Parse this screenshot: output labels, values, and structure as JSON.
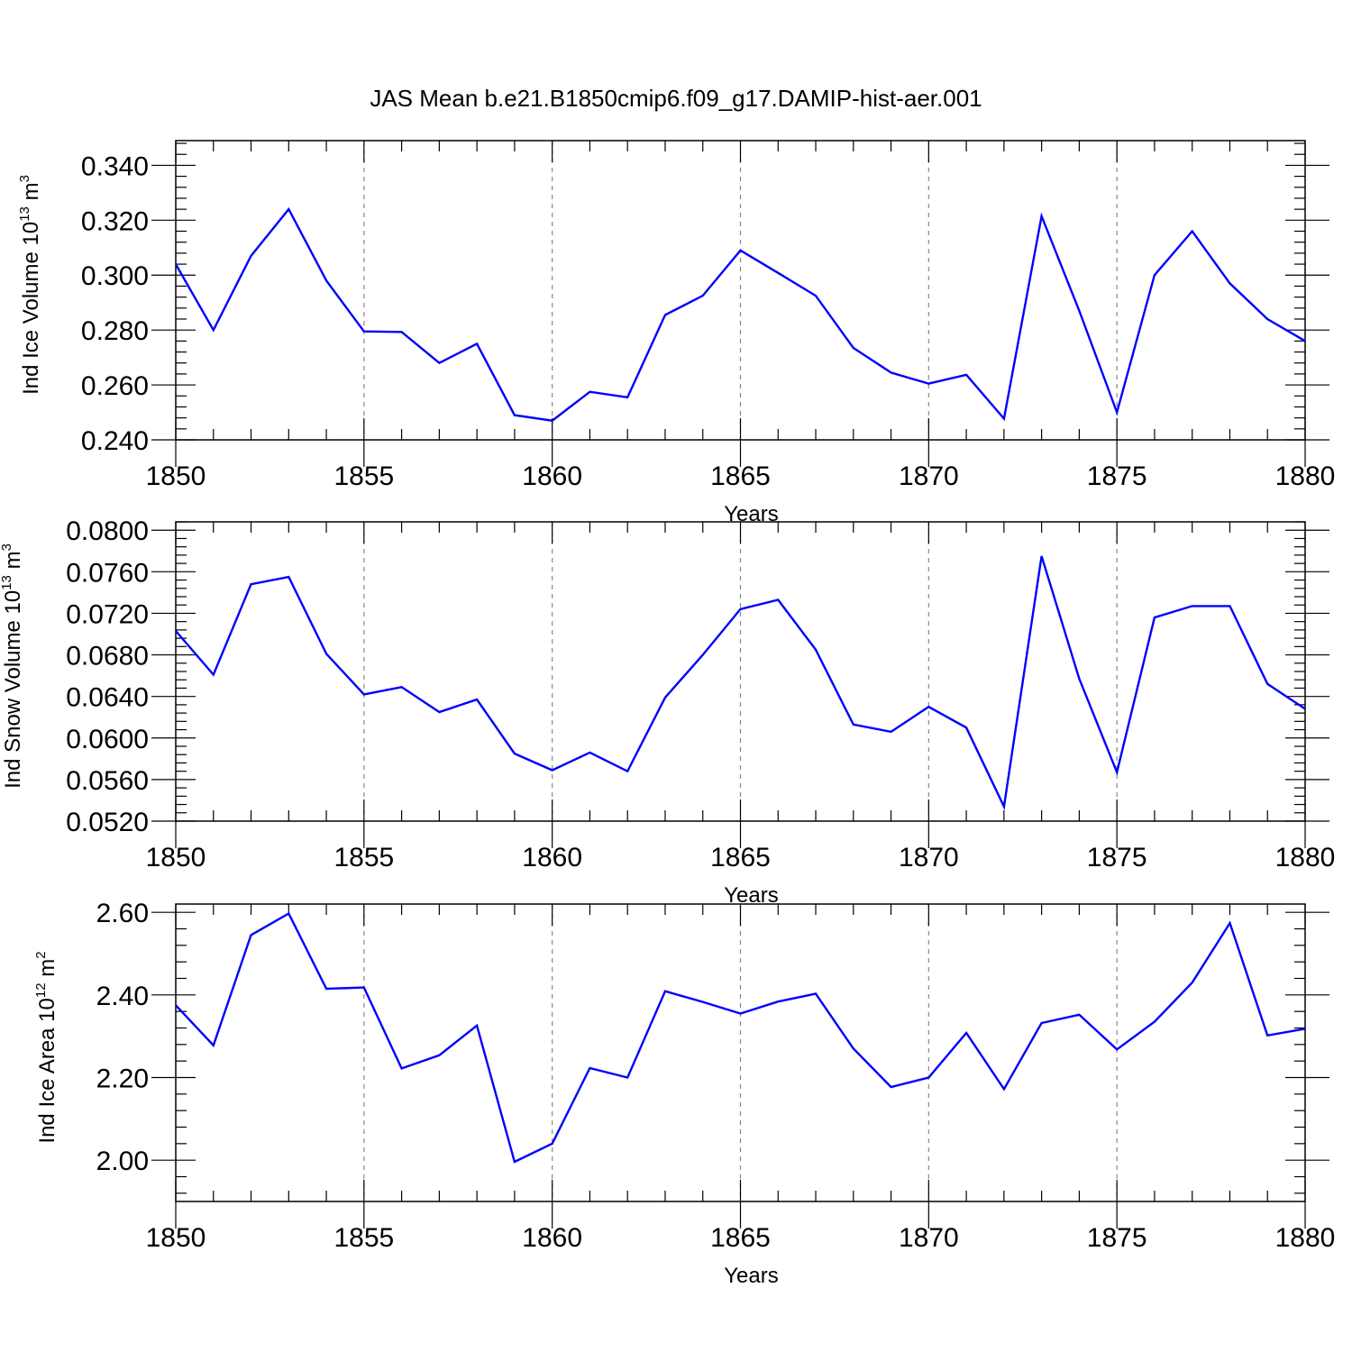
{
  "figure": {
    "title": "JAS Mean b.e21.B1850cmip6.f09_g17.DAMIP-hist-aer.001",
    "line_color": "#0000ff",
    "grid_color": "#888888"
  },
  "chart_data": [
    {
      "type": "line",
      "xlabel": "Years",
      "ylabel_main": "Ind Ice Volume 10",
      "ylabel_exp": "13",
      "ylabel_unit": "m",
      "ylabel_unit_exp": "3",
      "xlim": [
        1850,
        1880
      ],
      "ylim": [
        0.24,
        0.349
      ],
      "xticks": [
        1850,
        1855,
        1860,
        1865,
        1870,
        1875,
        1880
      ],
      "xtick_labels": [
        "1850",
        "1855",
        "1860",
        "1865",
        "1870",
        "1875",
        "1880"
      ],
      "yticks": [
        0.24,
        0.26,
        0.28,
        0.3,
        0.32,
        0.34
      ],
      "ytick_labels": [
        "0.240",
        "0.260",
        "0.280",
        "0.300",
        "0.320",
        "0.340"
      ],
      "grid": "x-dashed",
      "x": [
        1850,
        1851,
        1852,
        1853,
        1854,
        1855,
        1856,
        1857,
        1858,
        1859,
        1860,
        1861,
        1862,
        1863,
        1864,
        1865,
        1866,
        1867,
        1868,
        1869,
        1870,
        1871,
        1872,
        1873,
        1874,
        1875,
        1876,
        1877,
        1878,
        1879,
        1880
      ],
      "y": [
        0.304,
        0.28,
        0.307,
        0.324,
        0.298,
        0.2795,
        0.2793,
        0.268,
        0.275,
        0.249,
        0.247,
        0.2575,
        0.2555,
        0.2855,
        0.2925,
        0.309,
        0.3008,
        0.2925,
        0.2735,
        0.2645,
        0.2605,
        0.2637,
        0.2477,
        0.3215,
        0.287,
        0.25,
        0.3,
        0.316,
        0.297,
        0.284,
        0.276
      ]
    },
    {
      "type": "line",
      "xlabel": "Years",
      "ylabel_main": "Ind Snow Volume 10",
      "ylabel_exp": "13",
      "ylabel_unit": "m",
      "ylabel_unit_exp": "3",
      "xlim": [
        1850,
        1880
      ],
      "ylim": [
        0.052,
        0.0808
      ],
      "xticks": [
        1850,
        1855,
        1860,
        1865,
        1870,
        1875,
        1880
      ],
      "xtick_labels": [
        "1850",
        "1855",
        "1860",
        "1865",
        "1870",
        "1875",
        "1880"
      ],
      "yticks": [
        0.052,
        0.056,
        0.06,
        0.064,
        0.068,
        0.072,
        0.076,
        0.08
      ],
      "ytick_labels": [
        "0.0520",
        "0.0560",
        "0.0600",
        "0.0640",
        "0.0680",
        "0.0720",
        "0.0760",
        "0.0800"
      ],
      "grid": "x-dashed",
      "x": [
        1850,
        1851,
        1852,
        1853,
        1854,
        1855,
        1856,
        1857,
        1858,
        1859,
        1860,
        1861,
        1862,
        1863,
        1864,
        1865,
        1866,
        1867,
        1868,
        1869,
        1870,
        1871,
        1872,
        1873,
        1874,
        1875,
        1876,
        1877,
        1878,
        1879,
        1880
      ],
      "y": [
        0.0703,
        0.0661,
        0.0748,
        0.0755,
        0.0681,
        0.0642,
        0.0649,
        0.0625,
        0.0637,
        0.0585,
        0.0569,
        0.0586,
        0.0568,
        0.0639,
        0.068,
        0.0724,
        0.0733,
        0.0685,
        0.0613,
        0.0606,
        0.063,
        0.061,
        0.0534,
        0.0775,
        0.0657,
        0.0567,
        0.0716,
        0.0727,
        0.0727,
        0.0652,
        0.0628
      ]
    },
    {
      "type": "line",
      "xlabel": "Years",
      "ylabel_main": "Ind Ice Area 10",
      "ylabel_exp": "12",
      "ylabel_unit": "m",
      "ylabel_unit_exp": "2",
      "xlim": [
        1850,
        1880
      ],
      "ylim": [
        1.9,
        2.62
      ],
      "xticks": [
        1850,
        1855,
        1860,
        1865,
        1870,
        1875,
        1880
      ],
      "xtick_labels": [
        "1850",
        "1855",
        "1860",
        "1865",
        "1870",
        "1875",
        "1880"
      ],
      "yticks": [
        2.0,
        2.2,
        2.4,
        2.6
      ],
      "ytick_labels": [
        "2.00",
        "2.20",
        "2.40",
        "2.60"
      ],
      "grid": "x-dashed",
      "x": [
        1850,
        1851,
        1852,
        1853,
        1854,
        1855,
        1856,
        1857,
        1858,
        1859,
        1860,
        1861,
        1862,
        1863,
        1864,
        1865,
        1866,
        1867,
        1868,
        1869,
        1870,
        1871,
        1872,
        1873,
        1874,
        1875,
        1876,
        1877,
        1878,
        1879,
        1880
      ],
      "y": [
        2.375,
        2.278,
        2.545,
        2.597,
        2.415,
        2.418,
        2.222,
        2.254,
        2.326,
        1.996,
        2.04,
        2.223,
        2.2,
        2.409,
        2.383,
        2.355,
        2.384,
        2.403,
        2.27,
        2.177,
        2.2,
        2.308,
        2.172,
        2.332,
        2.352,
        2.268,
        2.335,
        2.43,
        2.574,
        2.302,
        2.318
      ]
    }
  ]
}
